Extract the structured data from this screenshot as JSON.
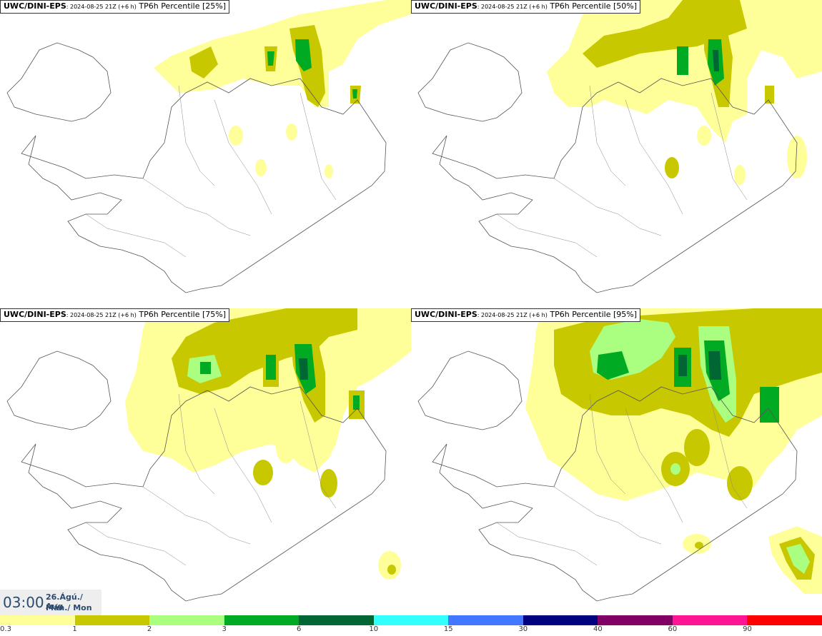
{
  "panels": [
    {
      "model": "UWC/DINI-EPS",
      "run": ": 2024-08-25 21Z (+6 h)",
      "title": " TP6h Percentile [25%]"
    },
    {
      "model": "UWC/DINI-EPS",
      "run": ": 2024-08-25 21Z (+6 h)",
      "title": " TP6h Percentile [50%]"
    },
    {
      "model": "UWC/DINI-EPS",
      "run": ": 2024-08-25 21Z (+6 h)",
      "title": " TP6h Percentile [75%]"
    },
    {
      "model": "UWC/DINI-EPS",
      "run": ": 2024-08-25 21Z (+6 h)",
      "title": " TP6h Percentile [95%]"
    }
  ],
  "valid": {
    "time": "03:00",
    "date_line1": "26.Ágú./ Aug",
    "date_line2": "Mán./ Mon"
  },
  "colorbar": {
    "colors": [
      "#ffff99",
      "#c8c800",
      "#aaff80",
      "#00aa22",
      "#006633",
      "#33ffff",
      "#4477ff",
      "#000080",
      "#800066",
      "#ff1493",
      "#ff0000"
    ],
    "ticks": [
      "0.3",
      "1",
      "2",
      "3",
      "6",
      "10",
      "15",
      "30",
      "40",
      "60",
      "90"
    ]
  },
  "precip_colors": {
    "light": "#ffff99",
    "moderate": "#c8c800",
    "heavy": "#aaff80",
    "very_heavy": "#00aa22",
    "extreme": "#006633"
  }
}
